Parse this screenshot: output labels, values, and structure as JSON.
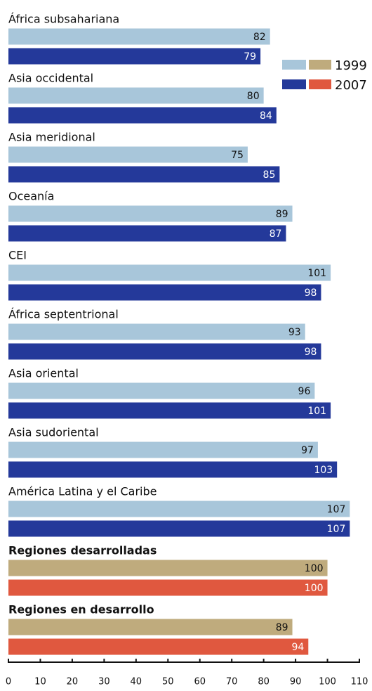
{
  "chart_data": {
    "type": "bar",
    "orientation": "horizontal",
    "categories": [
      "África subsahariana",
      "Asia occidental",
      "Asia meridional",
      "Oceanía",
      "CEI",
      "África septentrional",
      "Asia oriental",
      "Asia sudoriental",
      "América Latina y el Caribe",
      "Regiones desarrolladas",
      "Regiones en desarrollo"
    ],
    "series": [
      {
        "name": "1999",
        "values": [
          82,
          80,
          75,
          89,
          101,
          93,
          96,
          97,
          107,
          100,
          89
        ],
        "colors": [
          "#a8c6da",
          "#a8c6da",
          "#a8c6da",
          "#a8c6da",
          "#a8c6da",
          "#a8c6da",
          "#a8c6da",
          "#a8c6da",
          "#a8c6da",
          "#bfab7d",
          "#bfab7d"
        ]
      },
      {
        "name": "2007",
        "values": [
          79,
          84,
          85,
          87,
          98,
          98,
          101,
          103,
          107,
          100,
          94
        ],
        "colors": [
          "#24399a",
          "#24399a",
          "#24399a",
          "#24399a",
          "#24399a",
          "#24399a",
          "#24399a",
          "#24399a",
          "#24399a",
          "#e0583f",
          "#e0583f"
        ]
      }
    ],
    "xlim": [
      0,
      110
    ],
    "xticks": [
      0,
      10,
      20,
      30,
      40,
      50,
      60,
      70,
      80,
      90,
      100,
      110
    ],
    "legend": "top-right"
  }
}
